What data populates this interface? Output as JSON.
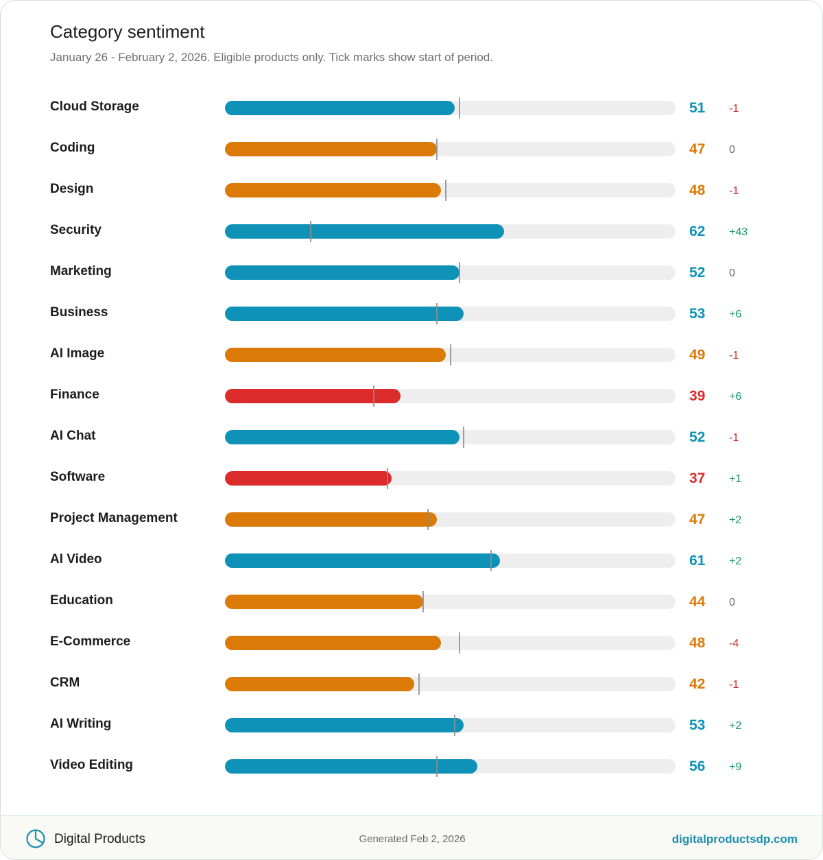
{
  "header": {
    "title": "Category sentiment",
    "subtitle": "January 26 - February 2, 2026. Eligible products only. Tick marks show start of period."
  },
  "colors": {
    "positive": "#0e92b8",
    "neutral": "#db7a06",
    "negative": "#dc2b2b",
    "delta_up": "#16946c",
    "delta_down": "#cf2a2a",
    "delta_flat": "#6a6a6a",
    "track": "#eeeeee"
  },
  "chart_data": {
    "type": "bar",
    "orientation": "horizontal",
    "xlim": [
      0,
      100
    ],
    "categories": [
      "Cloud Storage",
      "Coding",
      "Design",
      "Security",
      "Marketing",
      "Business",
      "AI Image",
      "Finance",
      "AI Chat",
      "Software",
      "Project Management",
      "AI Video",
      "Education",
      "E-Commerce",
      "CRM",
      "AI Writing",
      "Video Editing"
    ],
    "values": [
      51,
      47,
      48,
      62,
      52,
      53,
      49,
      39,
      52,
      37,
      47,
      61,
      44,
      48,
      42,
      53,
      56
    ],
    "start_values": [
      52,
      47,
      49,
      19,
      52,
      47,
      50,
      33,
      53,
      36,
      45,
      59,
      44,
      52,
      43,
      51,
      47
    ],
    "changes": [
      "-1",
      "0",
      "-1",
      "+43",
      "0",
      "+6",
      "-1",
      "+6",
      "-1",
      "+1",
      "+2",
      "+2",
      "0",
      "-4",
      "-1",
      "+2",
      "+9"
    ]
  },
  "footer": {
    "brand": "Digital Products",
    "generated": "Generated Feb 2, 2026",
    "site": "digitalproductsdp.com",
    "logo_icon": "pie-chart-icon"
  }
}
